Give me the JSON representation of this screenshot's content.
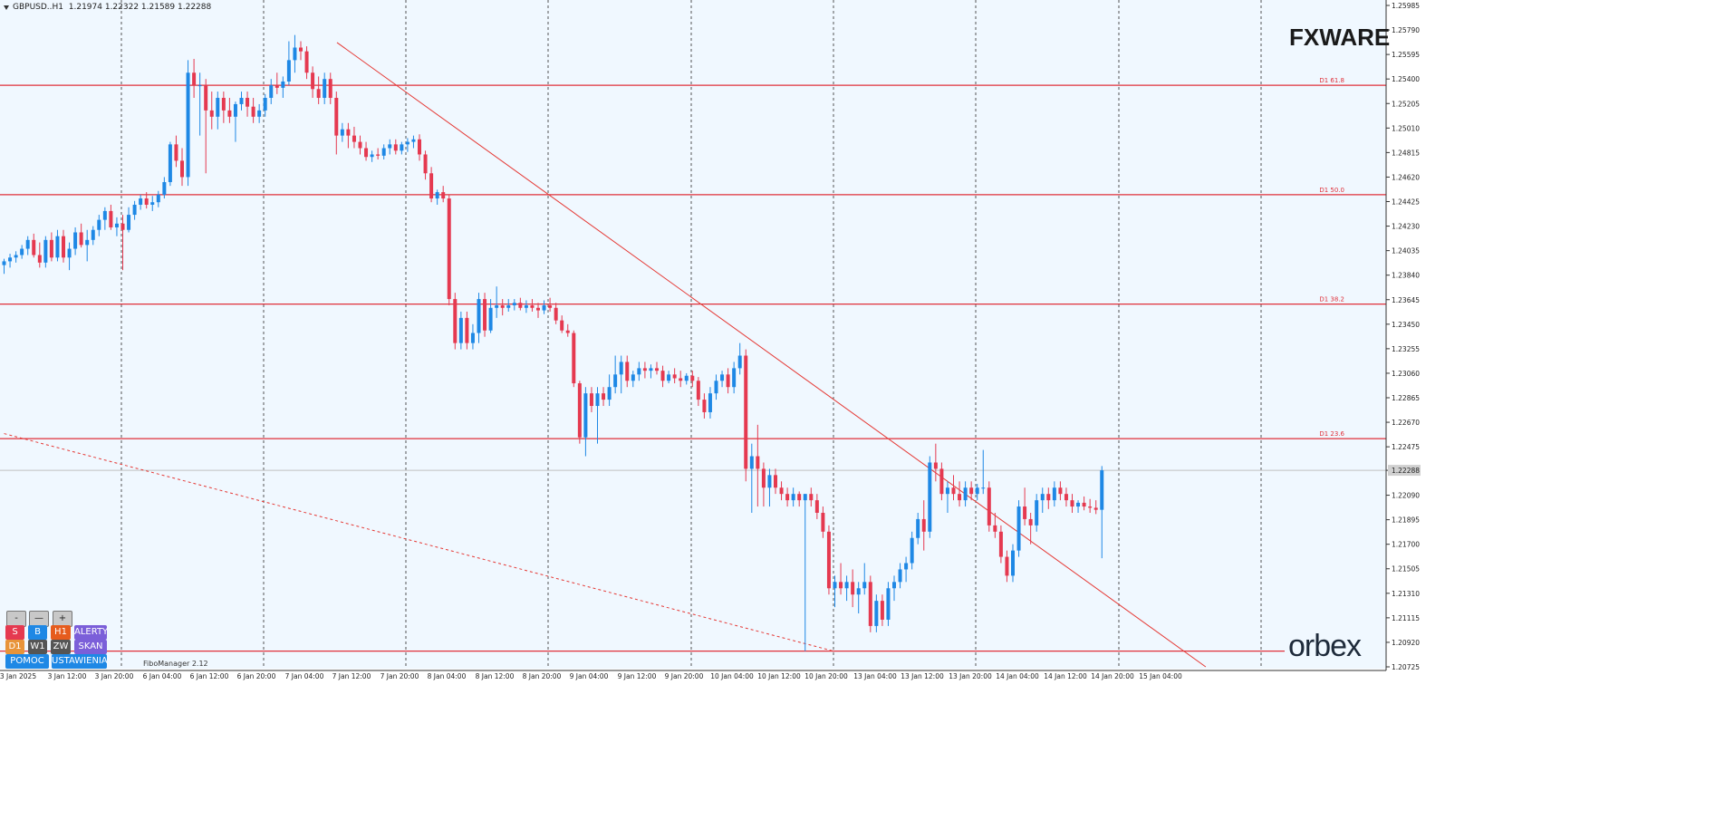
{
  "header": {
    "symbol": "GBPUSD..H1",
    "ohlc": "1.21974 1.22322 1.21589 1.22288"
  },
  "brand": {
    "top_logo": "FXWARE",
    "bottom_logo": "orbex"
  },
  "tool_label": "FiboManager 2.12",
  "buttons": {
    "minus": "-",
    "dash": "—",
    "plus": "+",
    "s": "S",
    "b": "B",
    "h1": "H1",
    "alerty": "ALERTY",
    "d1": "D1",
    "w1": "W1",
    "zw": "ZW",
    "skan": "SKAN",
    "pomoc": "POMOC",
    "ustawienia": "USTAWIENIA"
  },
  "colors": {
    "background": "#f0f8ff",
    "bull": "#1e88e5",
    "bear": "#e53950",
    "fib_line": "#e0303a",
    "trend_line": "#e53935",
    "grid": "#555555"
  },
  "chart_data": {
    "type": "candlestick",
    "ylim": [
      1.20725,
      1.25985
    ],
    "price_ticks": [
      "1.25985",
      "1.25790",
      "1.25595",
      "1.25400",
      "1.25205",
      "1.25010",
      "1.24815",
      "1.24620",
      "1.24425",
      "1.24230",
      "1.24035",
      "1.23840",
      "1.23645",
      "1.23450",
      "1.23255",
      "1.23060",
      "1.22865",
      "1.22670",
      "1.22475",
      "1.22288",
      "1.22090",
      "1.21895",
      "1.21700",
      "1.21505",
      "1.21310",
      "1.21115",
      "1.20920",
      "1.20725"
    ],
    "current_price": "1.22288",
    "time_labels": [
      "3 Jan 2025",
      "3 Jan 12:00",
      "3 Jan 20:00",
      "6 Jan 04:00",
      "6 Jan 12:00",
      "6 Jan 20:00",
      "7 Jan 04:00",
      "7 Jan 12:00",
      "7 Jan 20:00",
      "8 Jan 04:00",
      "8 Jan 12:00",
      "8 Jan 20:00",
      "9 Jan 04:00",
      "9 Jan 12:00",
      "9 Jan 20:00",
      "10 Jan 04:00",
      "10 Jan 12:00",
      "10 Jan 20:00",
      "13 Jan 04:00",
      "13 Jan 12:00",
      "13 Jan 20:00",
      "14 Jan 04:00",
      "14 Jan 12:00",
      "14 Jan 20:00",
      "15 Jan 04:00"
    ],
    "fib_levels": [
      {
        "label": "D1 61.8",
        "price": 1.2535
      },
      {
        "label": "D1 50.0",
        "price": 1.2448
      },
      {
        "label": "D1 38.2",
        "price": 1.2361
      },
      {
        "label": "D1 23.6",
        "price": 1.2254
      },
      {
        "label": "",
        "price": 1.2085
      }
    ],
    "candles": [
      [
        1.2392,
        1.2397,
        1.2385,
        1.2395
      ],
      [
        1.2395,
        1.2401,
        1.239,
        1.2398
      ],
      [
        1.2398,
        1.2403,
        1.2394,
        1.24
      ],
      [
        1.24,
        1.2408,
        1.2397,
        1.2405
      ],
      [
        1.2405,
        1.2415,
        1.24,
        1.2412
      ],
      [
        1.2412,
        1.2417,
        1.2398,
        1.24
      ],
      [
        1.24,
        1.241,
        1.239,
        1.2394
      ],
      [
        1.2394,
        1.2415,
        1.239,
        1.2412
      ],
      [
        1.2412,
        1.2418,
        1.2395,
        1.2398
      ],
      [
        1.2398,
        1.242,
        1.2395,
        1.2415
      ],
      [
        1.2415,
        1.242,
        1.2394,
        1.2398
      ],
      [
        1.2398,
        1.241,
        1.2388,
        1.2405
      ],
      [
        1.2405,
        1.2422,
        1.24,
        1.2418
      ],
      [
        1.2418,
        1.2425,
        1.2406,
        1.2408
      ],
      [
        1.2408,
        1.242,
        1.2395,
        1.2412
      ],
      [
        1.2412,
        1.2423,
        1.2408,
        1.242
      ],
      [
        1.242,
        1.2432,
        1.2415,
        1.2428
      ],
      [
        1.2428,
        1.2438,
        1.242,
        1.2435
      ],
      [
        1.2435,
        1.244,
        1.242,
        1.2422
      ],
      [
        1.2422,
        1.243,
        1.2415,
        1.2425
      ],
      [
        1.2425,
        1.2432,
        1.2388,
        1.242
      ],
      [
        1.242,
        1.2438,
        1.2418,
        1.2432
      ],
      [
        1.2432,
        1.2443,
        1.2428,
        1.244
      ],
      [
        1.244,
        1.2448,
        1.2436,
        1.2445
      ],
      [
        1.2445,
        1.245,
        1.2437,
        1.244
      ],
      [
        1.244,
        1.2447,
        1.2435,
        1.2442
      ],
      [
        1.2442,
        1.2451,
        1.2438,
        1.2448
      ],
      [
        1.2448,
        1.2462,
        1.2445,
        1.2458
      ],
      [
        1.2458,
        1.249,
        1.2455,
        1.2488
      ],
      [
        1.2488,
        1.2495,
        1.247,
        1.2475
      ],
      [
        1.2475,
        1.2485,
        1.2455,
        1.2462
      ],
      [
        1.2462,
        1.2555,
        1.2455,
        1.2545
      ],
      [
        1.2545,
        1.2556,
        1.2525,
        1.2535
      ],
      [
        1.2535,
        1.2545,
        1.2495,
        1.2535
      ],
      [
        1.2535,
        1.254,
        1.2465,
        1.2515
      ],
      [
        1.2515,
        1.253,
        1.25,
        1.251
      ],
      [
        1.251,
        1.253,
        1.25,
        1.2525
      ],
      [
        1.2525,
        1.253,
        1.2505,
        1.2515
      ],
      [
        1.2515,
        1.2525,
        1.2505,
        1.251
      ],
      [
        1.251,
        1.2522,
        1.249,
        1.252
      ],
      [
        1.252,
        1.253,
        1.2515,
        1.2525
      ],
      [
        1.2525,
        1.253,
        1.251,
        1.2518
      ],
      [
        1.2518,
        1.2525,
        1.2505,
        1.251
      ],
      [
        1.251,
        1.252,
        1.2505,
        1.2515
      ],
      [
        1.2515,
        1.2528,
        1.251,
        1.2525
      ],
      [
        1.2525,
        1.254,
        1.252,
        1.2535
      ],
      [
        1.2535,
        1.2545,
        1.2528,
        1.2533
      ],
      [
        1.2533,
        1.2542,
        1.2525,
        1.2538
      ],
      [
        1.2538,
        1.257,
        1.2535,
        1.2555
      ],
      [
        1.2555,
        1.2575,
        1.2545,
        1.2565
      ],
      [
        1.2565,
        1.257,
        1.2555,
        1.2562
      ],
      [
        1.2562,
        1.2566,
        1.254,
        1.2545
      ],
      [
        1.2545,
        1.255,
        1.2525,
        1.2532
      ],
      [
        1.2532,
        1.2542,
        1.252,
        1.2525
      ],
      [
        1.2525,
        1.2545,
        1.252,
        1.254
      ],
      [
        1.254,
        1.2545,
        1.252,
        1.2525
      ],
      [
        1.2525,
        1.253,
        1.248,
        1.2495
      ],
      [
        1.2495,
        1.2505,
        1.249,
        1.25
      ],
      [
        1.25,
        1.2505,
        1.2485,
        1.2495
      ],
      [
        1.2495,
        1.2502,
        1.2485,
        1.249
      ],
      [
        1.249,
        1.2495,
        1.248,
        1.2485
      ],
      [
        1.2485,
        1.249,
        1.2475,
        1.2478
      ],
      [
        1.2478,
        1.2483,
        1.2474,
        1.248
      ],
      [
        1.248,
        1.2485,
        1.2476,
        1.2479
      ],
      [
        1.2479,
        1.2488,
        1.2476,
        1.2485
      ],
      [
        1.2485,
        1.2492,
        1.248,
        1.2488
      ],
      [
        1.2488,
        1.2492,
        1.248,
        1.2483
      ],
      [
        1.2483,
        1.249,
        1.248,
        1.2488
      ],
      [
        1.2488,
        1.2493,
        1.2482,
        1.249
      ],
      [
        1.249,
        1.2495,
        1.2485,
        1.2492
      ],
      [
        1.2492,
        1.2496,
        1.2475,
        1.248
      ],
      [
        1.248,
        1.2483,
        1.246,
        1.2465
      ],
      [
        1.2465,
        1.247,
        1.2442,
        1.2445
      ],
      [
        1.2445,
        1.2452,
        1.244,
        1.245
      ],
      [
        1.245,
        1.2455,
        1.2442,
        1.2445
      ],
      [
        1.2445,
        1.2448,
        1.236,
        1.2365
      ],
      [
        1.2365,
        1.237,
        1.2325,
        1.233
      ],
      [
        1.233,
        1.2355,
        1.2325,
        1.235
      ],
      [
        1.235,
        1.2355,
        1.2325,
        1.233
      ],
      [
        1.233,
        1.2345,
        1.2325,
        1.2338
      ],
      [
        1.2338,
        1.237,
        1.233,
        1.2365
      ],
      [
        1.2365,
        1.237,
        1.2335,
        1.234
      ],
      [
        1.234,
        1.2365,
        1.2338,
        1.2358
      ],
      [
        1.2358,
        1.2375,
        1.235,
        1.236
      ],
      [
        1.236,
        1.2365,
        1.2352,
        1.2358
      ],
      [
        1.2358,
        1.2365,
        1.2355,
        1.236
      ],
      [
        1.236,
        1.2365,
        1.2356,
        1.2362
      ],
      [
        1.2362,
        1.2366,
        1.2356,
        1.2358
      ],
      [
        1.2358,
        1.2364,
        1.2354,
        1.236
      ],
      [
        1.236,
        1.2365,
        1.2355,
        1.2358
      ],
      [
        1.2358,
        1.2362,
        1.235,
        1.2356
      ],
      [
        1.2356,
        1.2364,
        1.2353,
        1.236
      ],
      [
        1.236,
        1.2366,
        1.2355,
        1.2358
      ],
      [
        1.2358,
        1.2362,
        1.2345,
        1.2348
      ],
      [
        1.2348,
        1.2352,
        1.2338,
        1.234
      ],
      [
        1.234,
        1.2345,
        1.2335,
        1.2338
      ],
      [
        1.2338,
        1.234,
        1.2295,
        1.2298
      ],
      [
        1.2298,
        1.23,
        1.225,
        1.2255
      ],
      [
        1.2255,
        1.2295,
        1.224,
        1.229
      ],
      [
        1.229,
        1.2295,
        1.2275,
        1.228
      ],
      [
        1.228,
        1.2295,
        1.225,
        1.229
      ],
      [
        1.229,
        1.2295,
        1.228,
        1.2285
      ],
      [
        1.2285,
        1.2305,
        1.228,
        1.2295
      ],
      [
        1.2295,
        1.232,
        1.229,
        1.2305
      ],
      [
        1.2305,
        1.232,
        1.229,
        1.2315
      ],
      [
        1.2315,
        1.232,
        1.2295,
        1.23
      ],
      [
        1.23,
        1.2308,
        1.2295,
        1.2305
      ],
      [
        1.2305,
        1.2315,
        1.23,
        1.231
      ],
      [
        1.231,
        1.2315,
        1.2302,
        1.2308
      ],
      [
        1.2308,
        1.2313,
        1.2302,
        1.231
      ],
      [
        1.231,
        1.2315,
        1.2305,
        1.2308
      ],
      [
        1.2308,
        1.2312,
        1.2295,
        1.23
      ],
      [
        1.23,
        1.2308,
        1.2298,
        1.2305
      ],
      [
        1.2305,
        1.231,
        1.2298,
        1.2302
      ],
      [
        1.2302,
        1.2308,
        1.2295,
        1.23
      ],
      [
        1.23,
        1.2306,
        1.2297,
        1.2304
      ],
      [
        1.2304,
        1.2308,
        1.2295,
        1.23
      ],
      [
        1.23,
        1.2303,
        1.228,
        1.2285
      ],
      [
        1.2285,
        1.229,
        1.227,
        1.2275
      ],
      [
        1.2275,
        1.2295,
        1.227,
        1.229
      ],
      [
        1.229,
        1.2305,
        1.2285,
        1.23
      ],
      [
        1.23,
        1.2308,
        1.2295,
        1.2305
      ],
      [
        1.2305,
        1.231,
        1.229,
        1.2295
      ],
      [
        1.2295,
        1.2315,
        1.229,
        1.231
      ],
      [
        1.231,
        1.233,
        1.2305,
        1.232
      ],
      [
        1.232,
        1.2325,
        1.222,
        1.223
      ],
      [
        1.223,
        1.225,
        1.2195,
        1.224
      ],
      [
        1.224,
        1.2265,
        1.22,
        1.223
      ],
      [
        1.223,
        1.2235,
        1.22,
        1.2215
      ],
      [
        1.2215,
        1.223,
        1.22,
        1.2225
      ],
      [
        1.2225,
        1.223,
        1.221,
        1.2215
      ],
      [
        1.2215,
        1.222,
        1.2205,
        1.221
      ],
      [
        1.221,
        1.2215,
        1.22,
        1.2205
      ],
      [
        1.2205,
        1.2215,
        1.22,
        1.221
      ],
      [
        1.221,
        1.2212,
        1.22,
        1.2205
      ],
      [
        1.2205,
        1.221,
        1.2085,
        1.221
      ],
      [
        1.221,
        1.2215,
        1.22,
        1.2205
      ],
      [
        1.2205,
        1.221,
        1.219,
        1.2195
      ],
      [
        1.2195,
        1.22,
        1.2175,
        1.218
      ],
      [
        1.218,
        1.2185,
        1.213,
        1.2135
      ],
      [
        1.2135,
        1.2145,
        1.212,
        1.214
      ],
      [
        1.214,
        1.2155,
        1.213,
        1.2135
      ],
      [
        1.2135,
        1.2145,
        1.2125,
        1.214
      ],
      [
        1.214,
        1.215,
        1.212,
        1.213
      ],
      [
        1.213,
        1.214,
        1.2115,
        1.2135
      ],
      [
        1.2135,
        1.2155,
        1.213,
        1.214
      ],
      [
        1.214,
        1.2145,
        1.21,
        1.2105
      ],
      [
        1.2105,
        1.213,
        1.21,
        1.2125
      ],
      [
        1.2125,
        1.213,
        1.2105,
        1.211
      ],
      [
        1.211,
        1.214,
        1.2105,
        1.2135
      ],
      [
        1.2135,
        1.2145,
        1.2125,
        1.214
      ],
      [
        1.214,
        1.2155,
        1.2135,
        1.215
      ],
      [
        1.215,
        1.216,
        1.214,
        1.2155
      ],
      [
        1.2155,
        1.218,
        1.215,
        1.2175
      ],
      [
        1.2175,
        1.2195,
        1.217,
        1.219
      ],
      [
        1.219,
        1.2205,
        1.2165,
        1.218
      ],
      [
        1.218,
        1.224,
        1.2175,
        1.2235
      ],
      [
        1.2235,
        1.225,
        1.222,
        1.223
      ],
      [
        1.223,
        1.2235,
        1.2205,
        1.221
      ],
      [
        1.221,
        1.222,
        1.2195,
        1.2215
      ],
      [
        1.2215,
        1.2225,
        1.2205,
        1.221
      ],
      [
        1.221,
        1.222,
        1.22,
        1.2205
      ],
      [
        1.2205,
        1.222,
        1.22,
        1.2215
      ],
      [
        1.2215,
        1.222,
        1.2205,
        1.221
      ],
      [
        1.221,
        1.2218,
        1.2205,
        1.2215
      ],
      [
        1.2215,
        1.2245,
        1.221,
        1.2215
      ],
      [
        1.2215,
        1.222,
        1.218,
        1.2185
      ],
      [
        1.2185,
        1.2195,
        1.2175,
        1.218
      ],
      [
        1.218,
        1.2185,
        1.2155,
        1.216
      ],
      [
        1.216,
        1.2165,
        1.214,
        1.2145
      ],
      [
        1.2145,
        1.217,
        1.214,
        1.2165
      ],
      [
        1.2165,
        1.2205,
        1.216,
        1.22
      ],
      [
        1.22,
        1.2215,
        1.2185,
        1.219
      ],
      [
        1.219,
        1.2195,
        1.217,
        1.2185
      ],
      [
        1.2185,
        1.221,
        1.218,
        1.2205
      ],
      [
        1.2205,
        1.2215,
        1.2195,
        1.221
      ],
      [
        1.221,
        1.2215,
        1.2198,
        1.2205
      ],
      [
        1.2205,
        1.222,
        1.22,
        1.2215
      ],
      [
        1.2215,
        1.222,
        1.2205,
        1.221
      ],
      [
        1.221,
        1.2215,
        1.22,
        1.2205
      ],
      [
        1.2205,
        1.221,
        1.2195,
        1.22
      ],
      [
        1.22,
        1.2205,
        1.2195,
        1.2203
      ],
      [
        1.2203,
        1.2208,
        1.2197,
        1.22
      ],
      [
        1.22,
        1.2206,
        1.2195,
        1.2199
      ],
      [
        1.2199,
        1.2205,
        1.2194,
        1.21974
      ],
      [
        1.21974,
        1.22322,
        1.21589,
        1.22288
      ]
    ],
    "trendlines": [
      {
        "style": "solid",
        "from": {
          "time": "7 Jan 07:00",
          "price": 1.2569
        },
        "to": {
          "time": "15 Jan 13:00",
          "price": 1.20725
        }
      },
      {
        "style": "dashed",
        "from": {
          "time": "3 Jan 00:00",
          "price": 1.2258
        },
        "to": {
          "time": "10 Jan 20:00",
          "price": 1.2085
        }
      }
    ]
  }
}
